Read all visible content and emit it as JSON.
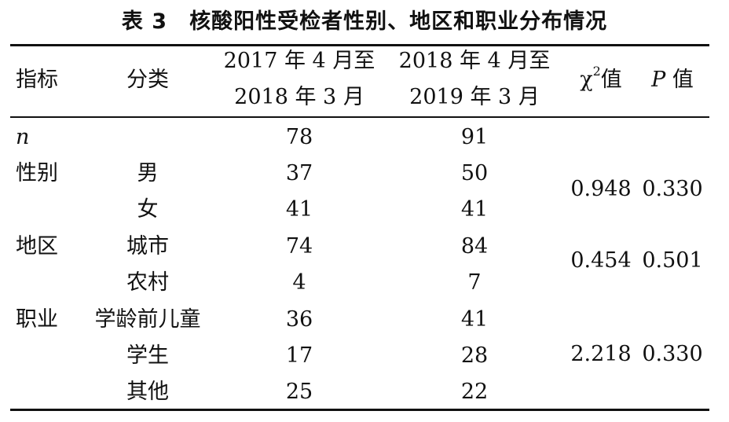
{
  "caption": "表 3　核酸阳性受检者性别、地区和职业分布情况",
  "header": {
    "indicator": "指标",
    "category": "分类",
    "period1_line1": "2017 年 4 月至",
    "period1_line2": "2018 年 3 月",
    "period2_line1": "2018 年 4 月至",
    "period2_line2": "2019 年 3 月",
    "chi_symbol": "χ",
    "chi_sup": "2",
    "chi_suffix": "值",
    "p_symbol": "P",
    "p_suffix": "值"
  },
  "n_row": {
    "label": "n",
    "v1": "78",
    "v2": "91"
  },
  "groups": {
    "gender": {
      "label": "性别",
      "rows": [
        {
          "category": "男",
          "v1": "37",
          "v2": "50"
        },
        {
          "category": "女",
          "v1": "41",
          "v2": "41"
        }
      ],
      "chi2": "0.948",
      "p": "0.330"
    },
    "region": {
      "label": "地区",
      "rows": [
        {
          "category": "城市",
          "v1": "74",
          "v2": "84"
        },
        {
          "category": "农村",
          "v1": "4",
          "v2": "7"
        }
      ],
      "chi2": "0.454",
      "p": "0.501"
    },
    "occupation": {
      "label": "职业",
      "rows": [
        {
          "category": "学龄前儿童",
          "v1": "36",
          "v2": "41"
        },
        {
          "category": "学生",
          "v1": "17",
          "v2": "28"
        },
        {
          "category": "其他",
          "v1": "25",
          "v2": "22"
        }
      ],
      "chi2": "2.218",
      "p": "0.330"
    }
  }
}
